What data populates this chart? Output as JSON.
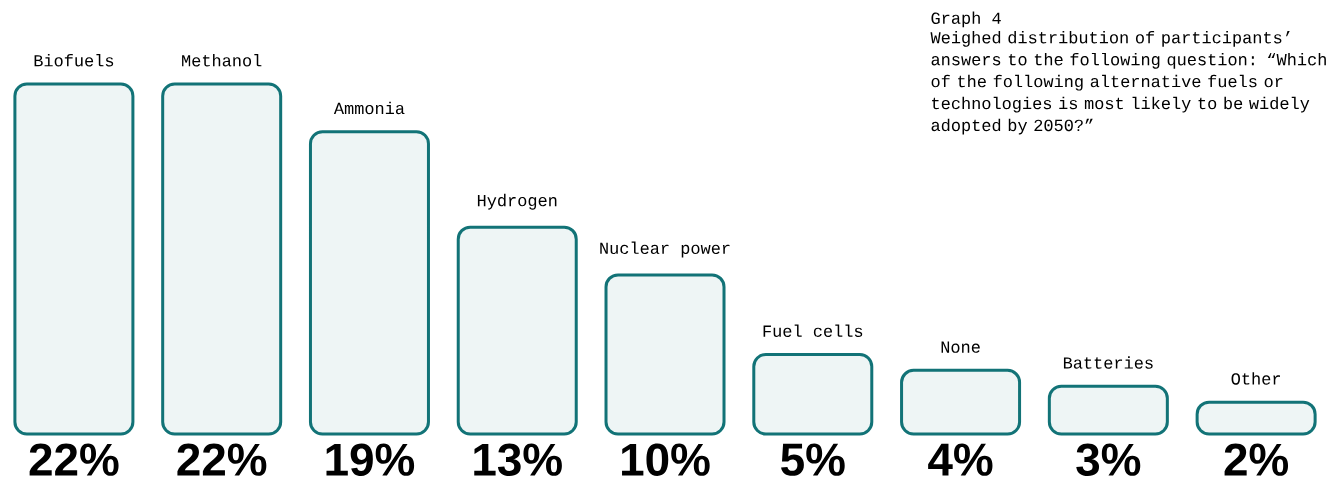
{
  "chart_data": {
    "type": "bar",
    "title": "Graph 4",
    "subtitle": "Weighed distribution of participants’ answers to the following question: “Which of the following alternative fuels or technologies is most likely to be widely adopted by 2050?”",
    "categories": [
      "Biofuels",
      "Methanol",
      "Ammonia",
      "Hydrogen",
      "Nuclear power",
      "Fuel cells",
      "None",
      "Batteries",
      "Other"
    ],
    "values": [
      22,
      22,
      19,
      13,
      10,
      5,
      4,
      3,
      2
    ],
    "value_labels": [
      "22%",
      "22%",
      "19%",
      "13%",
      "10%",
      "5%",
      "4%",
      "3%",
      "2%"
    ],
    "color": "#127377"
  }
}
